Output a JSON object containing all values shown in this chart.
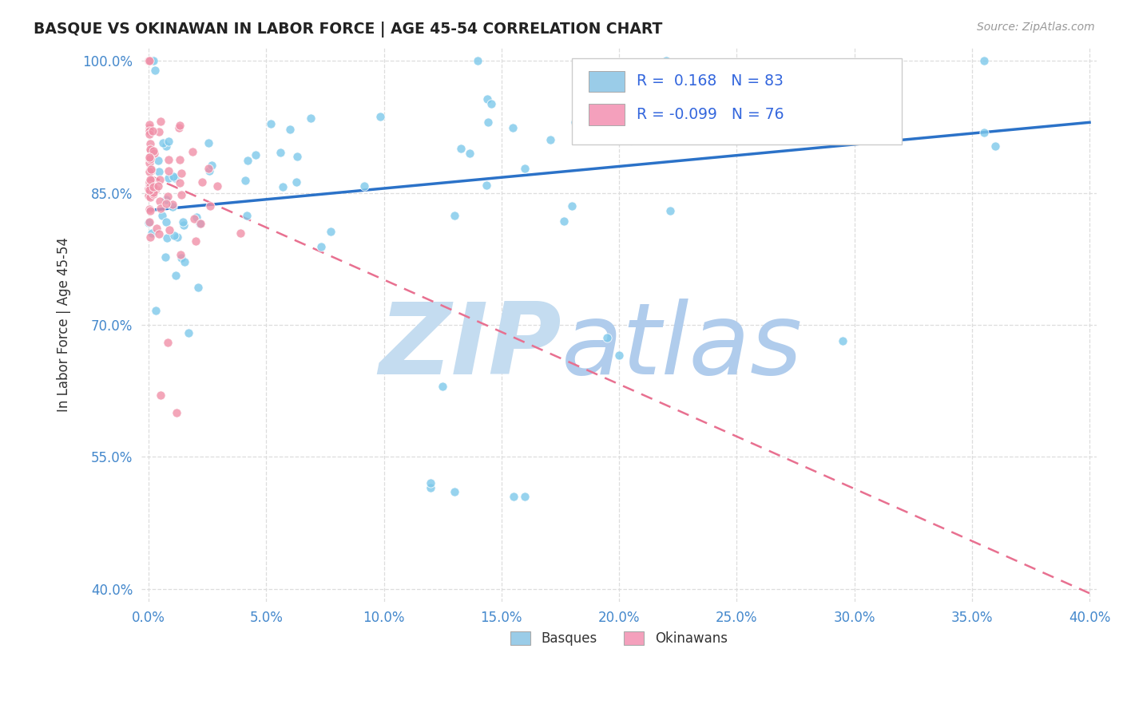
{
  "title": "BASQUE VS OKINAWAN IN LABOR FORCE | AGE 45-54 CORRELATION CHART",
  "source": "Source: ZipAtlas.com",
  "ylabel": "In Labor Force | Age 45-54",
  "xlim": [
    -0.003,
    0.403
  ],
  "ylim": [
    0.385,
    1.015
  ],
  "xticks": [
    0.0,
    0.05,
    0.1,
    0.15,
    0.2,
    0.25,
    0.3,
    0.35,
    0.4
  ],
  "yticks": [
    0.4,
    0.55,
    0.7,
    0.85,
    1.0
  ],
  "xtick_labels": [
    "0.0%",
    "5.0%",
    "10.0%",
    "15.0%",
    "20.0%",
    "25.0%",
    "30.0%",
    "35.0%",
    "40.0%"
  ],
  "ytick_labels": [
    "40.0%",
    "55.0%",
    "70.0%",
    "85.0%",
    "100.0%"
  ],
  "basque_R": 0.168,
  "basque_N": 83,
  "okinawan_R": -0.099,
  "okinawan_N": 76,
  "basque_color": "#7DC8EA",
  "okinawan_color": "#F090A8",
  "basque_line_color": "#2B72C8",
  "okinawan_line_color": "#E87090",
  "watermark_zip_color": "#C4DCF0",
  "watermark_atlas_color": "#B0CCEC",
  "background_color": "#FFFFFF",
  "grid_color": "#DDDDDD",
  "title_color": "#222222",
  "tick_color": "#4488CC",
  "source_color": "#999999",
  "legend_blue": "#9ACCE8",
  "legend_pink": "#F4A0BC",
  "rn_text_color": "#3366DD",
  "basque_trend_y0": 0.83,
  "basque_trend_y1": 0.93,
  "okinawan_trend_y0": 0.87,
  "okinawan_trend_y1": 0.395
}
